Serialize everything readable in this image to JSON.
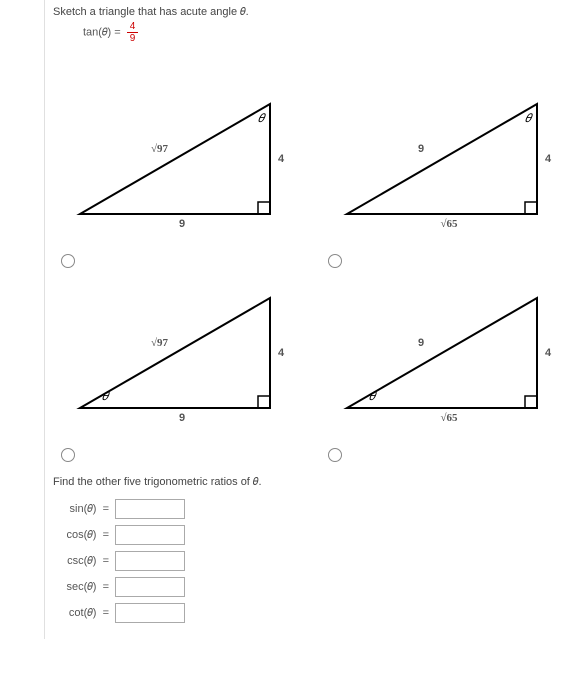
{
  "instruction": "Sketch a triangle that has acute angle 𝜃.",
  "equation": {
    "lhs_fn": "tan",
    "arg": "𝜃",
    "eq": " = ",
    "num": "4",
    "den": "9"
  },
  "fraction_color": "#cc0000",
  "triangles": [
    {
      "hyp_label": "√97",
      "bottom_label": "9",
      "right_label": "4",
      "theta_at_top": true
    },
    {
      "hyp_label": "9",
      "bottom_label": "√65",
      "right_label": "4",
      "theta_at_top": true
    },
    {
      "hyp_label": "√97",
      "bottom_label": "9",
      "right_label": "4",
      "theta_at_top": false
    },
    {
      "hyp_label": "9",
      "bottom_label": "√65",
      "right_label": "4",
      "theta_at_top": false
    }
  ],
  "theta_glyph": "𝜃",
  "ratios_heading": "Find the other five trigonometric ratios of 𝜃.",
  "ratios": [
    {
      "fn": "sin",
      "arg": "𝜃"
    },
    {
      "fn": "cos",
      "arg": "𝜃"
    },
    {
      "fn": "csc",
      "arg": "𝜃"
    },
    {
      "fn": "sec",
      "arg": "𝜃"
    },
    {
      "fn": "cot",
      "arg": "𝜃"
    }
  ],
  "triangle_style": {
    "stroke": "#000000",
    "stroke_width": 2,
    "label_font_size": 11,
    "sqrt_overline_color": "#000000"
  }
}
